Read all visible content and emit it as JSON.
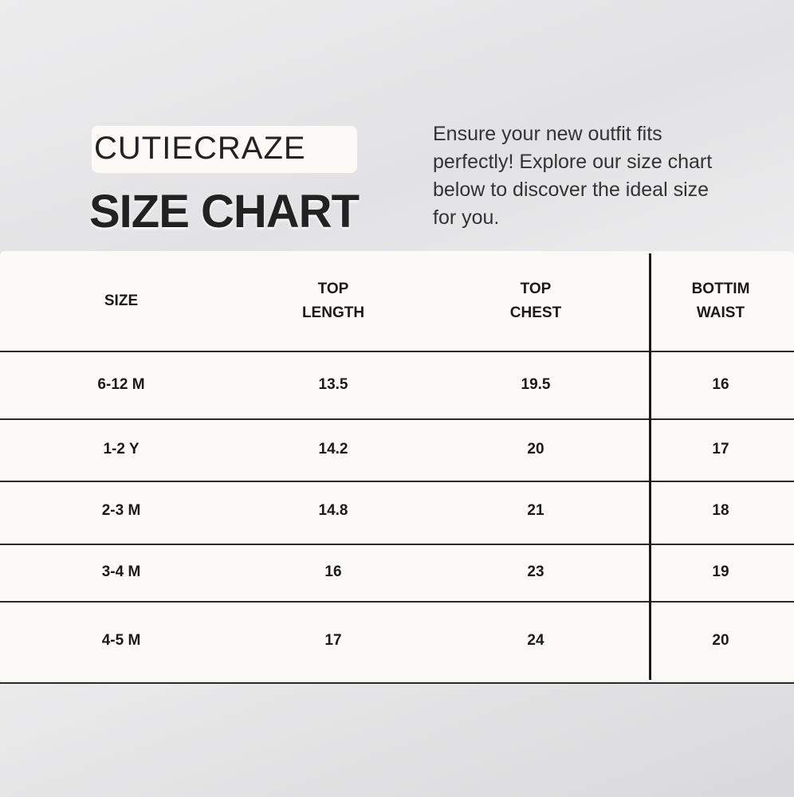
{
  "brand": "CUTIECRAZE",
  "title": "SIZE CHART",
  "intro": "Ensure your new outfit fits perfectly! Explore our size chart below to discover the ideal size for you.",
  "table": {
    "headers": [
      [
        "SIZE",
        ""
      ],
      [
        "TOP",
        "LENGTH"
      ],
      [
        "TOP",
        "CHEST"
      ],
      [
        "BOTTIM",
        "WAIST"
      ]
    ],
    "rows": [
      [
        "6-12 M",
        "13.5",
        "19.5",
        "16"
      ],
      [
        "1-2 Y",
        "14.2",
        "20",
        "17"
      ],
      [
        "2-3 M",
        "14.8",
        "21",
        "18"
      ],
      [
        "3-4 M",
        "16",
        "23",
        "19"
      ],
      [
        "4-5 M",
        "17",
        "24",
        "20"
      ]
    ]
  }
}
